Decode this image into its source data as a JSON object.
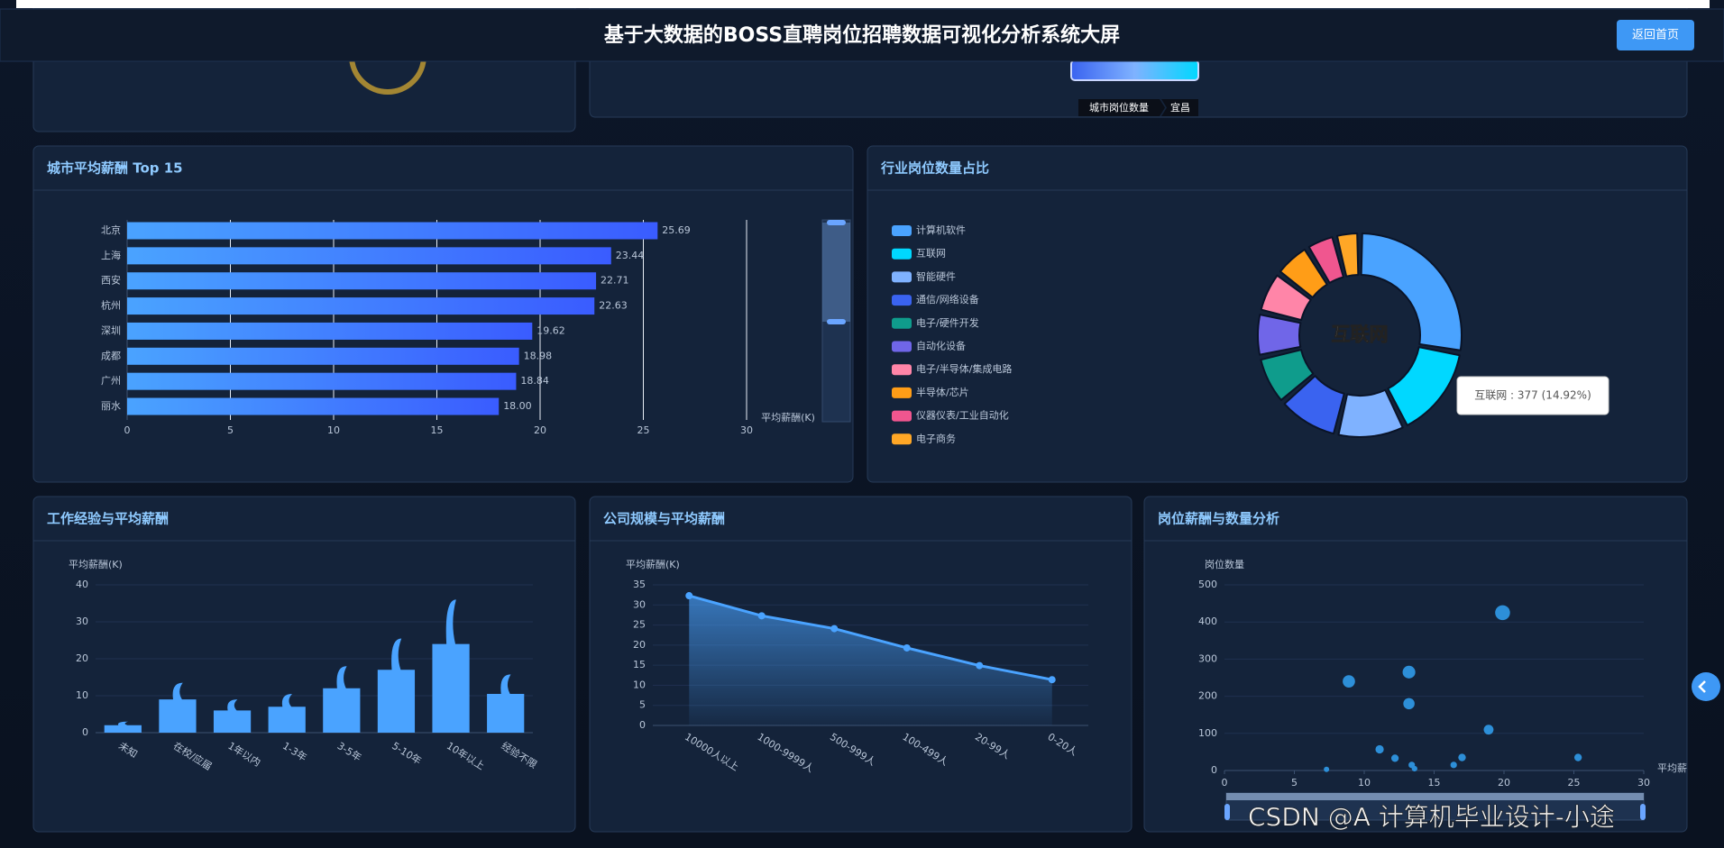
{
  "header": {
    "title": "基于大数据的BOSS直聘岗位招聘数据可视化分析系统大屏",
    "button": "返回首页"
  },
  "map_panel": {
    "visual_map_label": "城市岗位数量",
    "breadcrumb": "宜昌"
  },
  "watermark": "CSDN @A 计算机毕业设计-小途",
  "chart_data": [
    {
      "type": "hbar",
      "title": "城市平均薪酬 Top 15",
      "categories": [
        "北京",
        "上海",
        "西安",
        "杭州",
        "深圳",
        "成都",
        "广州",
        "丽水"
      ],
      "values": [
        25.69,
        23.44,
        22.71,
        22.63,
        19.62,
        18.98,
        18.84,
        18.0
      ],
      "value_labels": [
        "25.69",
        "23.44",
        "22.71",
        "22.63",
        "19.62",
        "18.98",
        "18.84",
        "18.00"
      ],
      "x_label": "平均薪酬(K)",
      "xlim": [
        0,
        30
      ],
      "xticks": [
        0,
        5,
        10,
        15,
        20,
        25,
        30
      ],
      "color": "#4a8cff",
      "grid": true
    },
    {
      "type": "pie",
      "title": "行业岗位数量占比",
      "categories": [
        "计算机软件",
        "互联网",
        "智能硬件",
        "通信/网络设备",
        "电子/硬件开发",
        "自动化设备",
        "电子/半导体/集成电路",
        "半导体/芯片",
        "仪器仪表/工业自动化",
        "电子商务"
      ],
      "values": [
        702,
        377,
        280,
        250,
        200,
        180,
        170,
        150,
        120,
        100
      ],
      "colors": [
        "#4aa3ff",
        "#00d8ff",
        "#7fb2ff",
        "#3a63f0",
        "#0f9c8c",
        "#7066e8",
        "#ff85a8",
        "#ff9d17",
        "#f0568f",
        "#ffa726"
      ],
      "center_label": "互联网",
      "tooltip": "互联网 : 377 (14.92%)"
    },
    {
      "type": "pictorial",
      "title": "工作经验与平均薪酬",
      "y_label": "平均薪酬(K)",
      "categories": [
        "未知",
        "在校/应届",
        "1年以内",
        "1-3年",
        "3-5年",
        "5-10年",
        "10年以上",
        "经验不限"
      ],
      "values": [
        2,
        9,
        6,
        7,
        12,
        17,
        24,
        10.5
      ],
      "ylim": [
        0,
        40
      ],
      "yticks": [
        0,
        10,
        20,
        30,
        40
      ],
      "color": "#4aa3ff"
    },
    {
      "type": "area",
      "title": "公司规模与平均薪酬",
      "y_label": "平均薪酬(K)",
      "categories": [
        "10000人以上",
        "1000-9999人",
        "500-999人",
        "100-499人",
        "20-99人",
        "0-20人"
      ],
      "values": [
        32.3,
        27.3,
        24.1,
        19.3,
        14.9,
        11.4
      ],
      "ylim": [
        0,
        35
      ],
      "yticks": [
        0,
        5,
        10,
        15,
        20,
        25,
        30,
        35
      ],
      "color": "#4aa3ff"
    },
    {
      "type": "scatter",
      "title": "岗位薪酬与数量分析",
      "x_label": "平均薪酬(K)",
      "y_label": "岗位数量",
      "x": [
        7.3,
        8.9,
        11.1,
        12.2,
        13.2,
        13.2,
        13.4,
        13.6,
        16.4,
        17.0,
        18.9,
        19.9,
        25.3
      ],
      "values": [
        3,
        240,
        57,
        33,
        265,
        180,
        15,
        5,
        15,
        35,
        110,
        425,
        35
      ],
      "xlim": [
        0,
        30
      ],
      "xticks": [
        0,
        5,
        10,
        15,
        20,
        25,
        30
      ],
      "ylim": [
        0,
        500
      ],
      "yticks": [
        0,
        100,
        200,
        300,
        400,
        500
      ],
      "color": "#2d8fd8",
      "grid": true
    }
  ]
}
